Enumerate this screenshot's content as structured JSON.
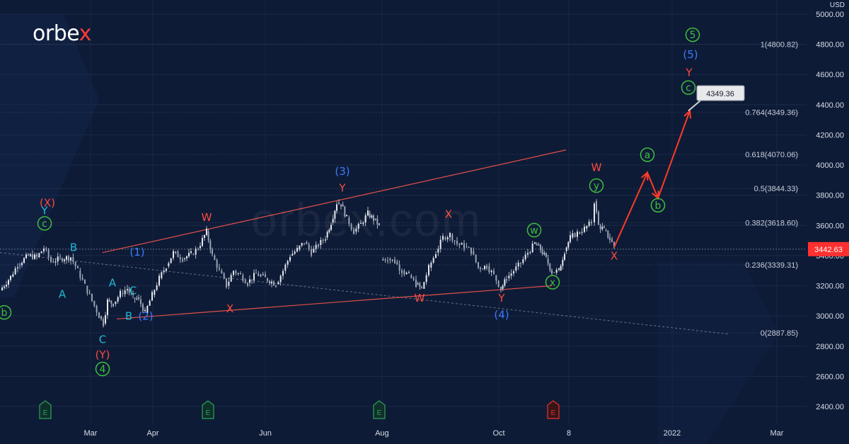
{
  "brand": {
    "name": "orbe",
    "accent": "x"
  },
  "currency": "USD",
  "watermark": "orbex.com",
  "colors": {
    "background": "#0e1b36",
    "grid": "#1b2a4a",
    "candle": "#d7dbe5",
    "channel": "#e2504a",
    "red_label": "#ff4a3d",
    "blue_label": "#3b7bff",
    "cyan_label": "#1fb8d6",
    "green_label": "#3fbf3f",
    "projection": "#ff3a2a",
    "price_tag": "#ff3030"
  },
  "chart_data": {
    "type": "candlestick",
    "instrument_currency": "USD",
    "y_axis": {
      "ticks": [
        "2400.00",
        "2600.00",
        "2800.00",
        "3000.00",
        "3200.00",
        "3400.00",
        "3600.00",
        "3800.00",
        "4000.00",
        "4200.00",
        "4400.00",
        "4600.00",
        "4800.00",
        "5000.00"
      ],
      "ylim": [
        2300,
        5100
      ]
    },
    "x_axis": {
      "ticks": [
        "Mar",
        "Apr",
        "Jun",
        "Aug",
        "Oct",
        "8",
        "2022",
        "Mar"
      ]
    },
    "last_price": "3442.63",
    "target_label": "4349.36",
    "fibonacci_levels": [
      {
        "ratio": "1",
        "value": "4800.82",
        "text": "1(4800.82)"
      },
      {
        "ratio": "0.764",
        "value": "4349.36",
        "text": "0.764(4349.36)"
      },
      {
        "ratio": "0.618",
        "value": "4070.06",
        "text": "0.618(4070.06)"
      },
      {
        "ratio": "0.5",
        "value": "3844.33",
        "text": "0.5(3844.33)"
      },
      {
        "ratio": "0.382",
        "value": "3618.60",
        "text": "0.382(3618.60)"
      },
      {
        "ratio": "0.236",
        "value": "3339.31",
        "text": "0.236(3339.31)"
      },
      {
        "ratio": "0",
        "value": "2887.85",
        "text": "0(2887.85)"
      }
    ],
    "price_path": [
      [
        0,
        3170
      ],
      [
        15,
        3260
      ],
      [
        25,
        3340
      ],
      [
        40,
        3400
      ],
      [
        52,
        3390
      ],
      [
        62,
        3450
      ],
      [
        72,
        3360
      ],
      [
        85,
        3380
      ],
      [
        100,
        3390
      ],
      [
        110,
        3300
      ],
      [
        120,
        3200
      ],
      [
        130,
        3100
      ],
      [
        140,
        3000
      ],
      [
        146,
        2950
      ],
      [
        152,
        3100
      ],
      [
        160,
        3080
      ],
      [
        170,
        3150
      ],
      [
        180,
        3180
      ],
      [
        188,
        3120
      ],
      [
        196,
        3110
      ],
      [
        205,
        3020
      ],
      [
        215,
        3140
      ],
      [
        225,
        3250
      ],
      [
        235,
        3330
      ],
      [
        245,
        3420
      ],
      [
        258,
        3380
      ],
      [
        270,
        3410
      ],
      [
        280,
        3450
      ],
      [
        292,
        3560
      ],
      [
        300,
        3400
      ],
      [
        310,
        3300
      ],
      [
        320,
        3200
      ],
      [
        330,
        3300
      ],
      [
        340,
        3270
      ],
      [
        350,
        3220
      ],
      [
        362,
        3280
      ],
      [
        375,
        3250
      ],
      [
        390,
        3210
      ],
      [
        400,
        3300
      ],
      [
        410,
        3400
      ],
      [
        420,
        3440
      ],
      [
        430,
        3490
      ],
      [
        440,
        3420
      ],
      [
        450,
        3470
      ],
      [
        460,
        3520
      ],
      [
        468,
        3620
      ],
      [
        476,
        3750
      ],
      [
        482,
        3740
      ],
      [
        490,
        3650
      ],
      [
        500,
        3560
      ],
      [
        510,
        3610
      ],
      [
        520,
        3680
      ],
      [
        528,
        3640
      ],
      [
        536,
        3600
      ]
    ],
    "price_path_2": [
      [
        538,
        3370
      ],
      [
        548,
        3380
      ],
      [
        558,
        3360
      ],
      [
        568,
        3300
      ],
      [
        578,
        3270
      ],
      [
        588,
        3210
      ],
      [
        596,
        3180
      ],
      [
        606,
        3320
      ],
      [
        616,
        3420
      ],
      [
        626,
        3520
      ],
      [
        636,
        3540
      ],
      [
        646,
        3480
      ],
      [
        656,
        3460
      ],
      [
        666,
        3430
      ],
      [
        676,
        3320
      ],
      [
        688,
        3330
      ],
      [
        698,
        3270
      ],
      [
        708,
        3180
      ],
      [
        716,
        3250
      ],
      [
        726,
        3300
      ],
      [
        736,
        3350
      ],
      [
        746,
        3420
      ],
      [
        756,
        3480
      ],
      [
        764,
        3440
      ],
      [
        772,
        3380
      ],
      [
        780,
        3290
      ],
      [
        790,
        3300
      ],
      [
        798,
        3430
      ],
      [
        806,
        3520
      ],
      [
        816,
        3550
      ],
      [
        826,
        3580
      ],
      [
        836,
        3620
      ],
      [
        840,
        3760
      ],
      [
        846,
        3600
      ],
      [
        854,
        3570
      ],
      [
        862,
        3510
      ],
      [
        868,
        3460
      ]
    ],
    "channel_lines": [
      {
        "from": [
          145,
          3420
        ],
        "to": [
          800,
          4100
        ]
      },
      {
        "from": [
          165,
          2980
        ],
        "to": [
          780,
          3200
        ]
      }
    ],
    "dotted_trend": {
      "from": [
        0,
        3420
      ],
      "to": [
        1030,
        2880
      ]
    },
    "projection_path": [
      [
        868,
        3455
      ],
      [
        915,
        3950
      ],
      [
        930,
        3780
      ],
      [
        975,
        4360
      ]
    ],
    "wave_labels": [
      {
        "text": "(X)",
        "x": 67,
        "y": 3725,
        "color": "red"
      },
      {
        "text": "Y",
        "x": 63,
        "y": 3675,
        "color": "cyan"
      },
      {
        "text": "c",
        "x": 63,
        "y": 3590,
        "color": "green",
        "circled": true
      },
      {
        "text": "B",
        "x": 104,
        "y": 3430,
        "color": "cyan"
      },
      {
        "text": "A",
        "x": 88,
        "y": 3120,
        "color": "cyan"
      },
      {
        "text": "A",
        "x": 159,
        "y": 3195,
        "color": "cyan"
      },
      {
        "text": "C",
        "x": 188,
        "y": 3145,
        "color": "cyan"
      },
      {
        "text": "C",
        "x": 145,
        "y": 2820,
        "color": "cyan"
      },
      {
        "text": "(Y)",
        "x": 145,
        "y": 2720,
        "color": "red"
      },
      {
        "text": "4",
        "x": 145,
        "y": 2625,
        "color": "green",
        "circled": true
      },
      {
        "text": "B",
        "x": 182,
        "y": 2975,
        "color": "cyan"
      },
      {
        "text": "(2)",
        "x": 206,
        "y": 2975,
        "color": "blue"
      },
      {
        "text": "(1)",
        "x": 194,
        "y": 3400,
        "color": "blue"
      },
      {
        "text": "b",
        "x": 6,
        "y": 3000,
        "color": "green",
        "circled": true
      },
      {
        "text": "W",
        "x": 292,
        "y": 3630,
        "color": "red"
      },
      {
        "text": "X",
        "x": 325,
        "y": 3025,
        "color": "red"
      },
      {
        "text": "(3)",
        "x": 484,
        "y": 3935,
        "color": "blue"
      },
      {
        "text": "Y",
        "x": 484,
        "y": 3825,
        "color": "red"
      },
      {
        "text": "X",
        "x": 634,
        "y": 3650,
        "color": "red"
      },
      {
        "text": "W",
        "x": 593,
        "y": 3095,
        "color": "red"
      },
      {
        "text": "Y",
        "x": 709,
        "y": 3095,
        "color": "red"
      },
      {
        "text": "(4)",
        "x": 709,
        "y": 2985,
        "color": "blue"
      },
      {
        "text": "w",
        "x": 755,
        "y": 3545,
        "color": "green",
        "circled": true
      },
      {
        "text": "x",
        "x": 781,
        "y": 3200,
        "color": "green",
        "circled": true
      },
      {
        "text": "W",
        "x": 843,
        "y": 3960,
        "color": "red"
      },
      {
        "text": "y",
        "x": 843,
        "y": 3840,
        "color": "green",
        "circled": true
      },
      {
        "text": "X",
        "x": 868,
        "y": 3375,
        "color": "red"
      },
      {
        "text": "a",
        "x": 915,
        "y": 4045,
        "color": "green",
        "circled": true
      },
      {
        "text": "b",
        "x": 930,
        "y": 3710,
        "color": "green",
        "circled": true
      },
      {
        "text": "5",
        "x": 979,
        "y": 4840,
        "color": "green",
        "circled": true
      },
      {
        "text": "(5)",
        "x": 976,
        "y": 4710,
        "color": "blue"
      },
      {
        "text": "Y",
        "x": 974,
        "y": 4590,
        "color": "red"
      },
      {
        "text": "c",
        "x": 973,
        "y": 4490,
        "color": "green",
        "circled": true
      }
    ],
    "event_markers": [
      {
        "text": "E",
        "x": 64,
        "color": "green"
      },
      {
        "text": "E",
        "x": 294,
        "color": "green"
      },
      {
        "text": "E",
        "x": 536,
        "color": "green"
      },
      {
        "text": "E",
        "x": 782,
        "color": "red"
      }
    ]
  }
}
